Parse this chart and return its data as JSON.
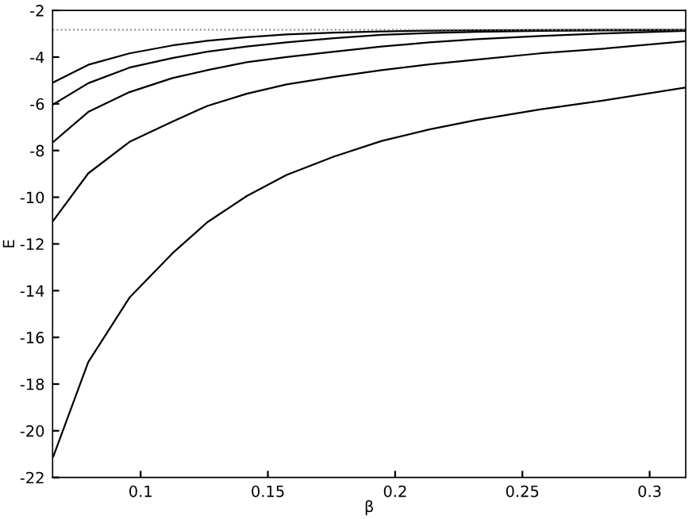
{
  "chart_data": {
    "type": "line",
    "xlabel": "β",
    "ylabel": "E",
    "x": [
      0.0657,
      0.0794,
      0.0956,
      0.1125,
      0.1262,
      0.1417,
      0.1573,
      0.176,
      0.1947,
      0.2134,
      0.2321,
      0.257,
      0.2819,
      0.3142
    ],
    "series": [
      {
        "color": "#000000",
        "values": [
          -5.08,
          -4.33,
          -3.84,
          -3.5,
          -3.3,
          -3.15,
          -3.03,
          -2.95,
          -2.9,
          -2.87,
          -2.85,
          -2.84,
          -2.83,
          -2.83
        ]
      },
      {
        "color": "#000000",
        "values": [
          -6.02,
          -5.12,
          -4.45,
          -4.04,
          -3.77,
          -3.55,
          -3.37,
          -3.19,
          -3.05,
          -2.97,
          -2.92,
          -2.88,
          -2.86,
          -2.85
        ]
      },
      {
        "color": "#000000",
        "values": [
          -7.63,
          -6.35,
          -5.5,
          -4.9,
          -4.56,
          -4.22,
          -4.0,
          -3.77,
          -3.55,
          -3.37,
          -3.23,
          -3.1,
          -2.99,
          -2.88
        ]
      },
      {
        "color": "#000000",
        "values": [
          -11.0,
          -8.98,
          -7.63,
          -6.76,
          -6.09,
          -5.57,
          -5.17,
          -4.85,
          -4.56,
          -4.31,
          -4.11,
          -3.84,
          -3.64,
          -3.32
        ]
      },
      {
        "color": "#000000",
        "values": [
          -21.1,
          -17.06,
          -14.3,
          -12.4,
          -11.07,
          -9.95,
          -9.05,
          -8.26,
          -7.59,
          -7.1,
          -6.69,
          -6.24,
          -5.86,
          -5.3
        ]
      }
    ],
    "ref_lines": [
      {
        "axis": "y",
        "value": -2.83,
        "color": "#808080",
        "line_style": "dotted"
      }
    ],
    "xlim": [
      0.0654,
      0.3142
    ],
    "ylim": [
      -22,
      -2
    ],
    "xticks": [
      0.1,
      0.15,
      0.2,
      0.25,
      0.3
    ],
    "yticks": [
      -22,
      -20,
      -18,
      -16,
      -14,
      -12,
      -10,
      -8,
      -6,
      -4,
      -2
    ],
    "grid": false,
    "legend": false,
    "marker": "none",
    "line_style": "solid"
  }
}
